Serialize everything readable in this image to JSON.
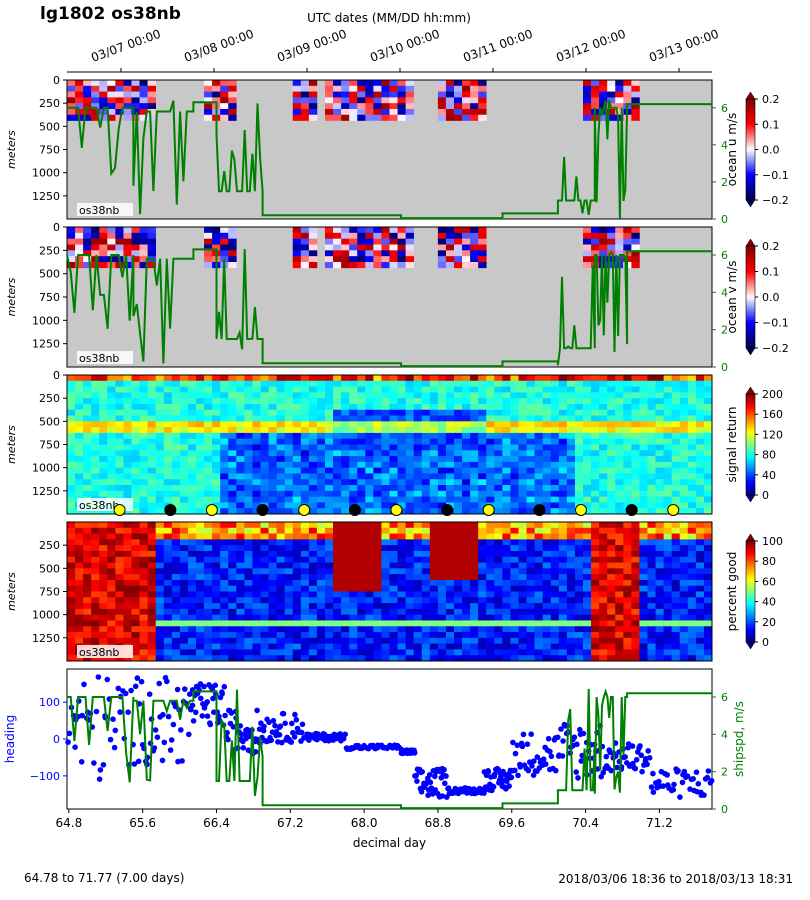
{
  "header": {
    "title": "lg1802 os38nb",
    "top_axis_label": "UTC dates (MM/DD hh:mm)",
    "top_ticks": [
      "03/07 00:00",
      "03/08 00:00",
      "03/09 00:00",
      "03/10 00:00",
      "03/11 00:00",
      "03/12 00:00",
      "03/13 00:00"
    ]
  },
  "footer": {
    "range_left": "64.78 to 71.77 (7.00 days)",
    "range_right": "2018/03/06 18:36 to 2018/03/13 18:31"
  },
  "colors": {
    "nodata": "#c8c8c8",
    "ship_speed": "#008000",
    "heading": "#0000ff",
    "marker_night": "#000000",
    "marker_day": "#ffff00"
  },
  "chart_data": [
    {
      "type": "heatmap",
      "panel": "ocean_u",
      "ylabel": "meters",
      "tag": "os38nb",
      "yticks": [
        "0",
        "250",
        "500",
        "750",
        "1000",
        "1250"
      ],
      "ylim": [
        1500,
        0
      ],
      "xlim": [
        64.78,
        71.77
      ],
      "colorbar": {
        "label": "ocean u m/s",
        "ticks": [
          "0.2",
          "0.1",
          "0.0",
          "−0.1",
          "−0.2"
        ],
        "range": [
          -0.2,
          0.2
        ],
        "colormap": "seismic"
      },
      "right_axis": {
        "ticks": [
          "6",
          "4",
          "2",
          "0"
        ]
      }
    },
    {
      "type": "heatmap",
      "panel": "ocean_v",
      "ylabel": "meters",
      "tag": "os38nb",
      "yticks": [
        "0",
        "250",
        "500",
        "750",
        "1000",
        "1250"
      ],
      "ylim": [
        1500,
        0
      ],
      "xlim": [
        64.78,
        71.77
      ],
      "colorbar": {
        "label": "ocean v m/s",
        "ticks": [
          "0.2",
          "0.1",
          "0.0",
          "−0.1",
          "−0.2"
        ],
        "range": [
          -0.2,
          0.2
        ],
        "colormap": "seismic"
      },
      "right_axis": {
        "ticks": [
          "6",
          "4",
          "2",
          "0"
        ]
      }
    },
    {
      "type": "heatmap",
      "panel": "signal_return",
      "ylabel": "meters",
      "tag": "os38nb",
      "yticks": [
        "0",
        "250",
        "500",
        "750",
        "1000",
        "1250"
      ],
      "ylim": [
        1500,
        0
      ],
      "xlim": [
        64.78,
        71.77
      ],
      "colorbar": {
        "label": "signal return",
        "ticks": [
          "200",
          "160",
          "120",
          "80",
          "40",
          "0"
        ],
        "range": [
          0,
          200
        ],
        "colormap": "jet"
      },
      "day_night_markers": [
        {
          "x": 65.35,
          "kind": "day"
        },
        {
          "x": 65.9,
          "kind": "night"
        },
        {
          "x": 66.35,
          "kind": "day"
        },
        {
          "x": 66.9,
          "kind": "night"
        },
        {
          "x": 67.35,
          "kind": "day"
        },
        {
          "x": 67.9,
          "kind": "night"
        },
        {
          "x": 68.35,
          "kind": "day"
        },
        {
          "x": 68.9,
          "kind": "night"
        },
        {
          "x": 69.35,
          "kind": "day"
        },
        {
          "x": 69.9,
          "kind": "night"
        },
        {
          "x": 70.35,
          "kind": "day"
        },
        {
          "x": 70.9,
          "kind": "night"
        },
        {
          "x": 71.35,
          "kind": "day"
        }
      ]
    },
    {
      "type": "heatmap",
      "panel": "percent_good",
      "ylabel": "meters",
      "tag": "os38nb",
      "yticks": [
        "250",
        "500",
        "750",
        "1000",
        "1250"
      ],
      "ylim": [
        1500,
        0
      ],
      "xlim": [
        64.78,
        71.77
      ],
      "colorbar": {
        "label": "percent good",
        "ticks": [
          "100",
          "80",
          "60",
          "40",
          "20",
          "0"
        ],
        "range": [
          0,
          100
        ],
        "colormap": "jet"
      }
    },
    {
      "type": "scatter",
      "panel": "heading_speed",
      "xlabel": "decimal day",
      "xticks": [
        "64.8",
        "65.6",
        "66.4",
        "67.2",
        "68.0",
        "68.8",
        "69.6",
        "70.4",
        "71.2"
      ],
      "xlim": [
        64.78,
        71.77
      ],
      "left_axis": {
        "label": "heading",
        "ticks": [
          "100",
          "0",
          "−100"
        ],
        "ylim": [
          -190,
          190
        ]
      },
      "right_axis": {
        "label": "shipspd, m/s",
        "ticks": [
          "6",
          "4",
          "2",
          "0"
        ],
        "ylim": [
          0,
          7.5
        ]
      },
      "ship_speed_segments": [
        {
          "from": 64.78,
          "to": 65.5,
          "speed": 6.0,
          "noisy": true
        },
        {
          "from": 65.5,
          "to": 66.15,
          "speed": 5.8,
          "noisy": true
        },
        {
          "from": 66.15,
          "to": 66.4,
          "speed": 6.3,
          "noisy": false
        },
        {
          "from": 66.4,
          "to": 66.9,
          "speed": 1.5,
          "noisy": true
        },
        {
          "from": 66.9,
          "to": 68.4,
          "speed": 0.2,
          "noisy": false
        },
        {
          "from": 68.4,
          "to": 69.5,
          "speed": 0.05,
          "noisy": false
        },
        {
          "from": 69.5,
          "to": 70.1,
          "speed": 0.3,
          "noisy": false
        },
        {
          "from": 70.1,
          "to": 70.5,
          "speed": 1.0,
          "noisy": true
        },
        {
          "from": 70.5,
          "to": 70.85,
          "speed": 6.0,
          "noisy": true
        },
        {
          "from": 70.85,
          "to": 71.77,
          "speed": 6.2,
          "noisy": false
        }
      ],
      "heading_segments": [
        {
          "from": 64.78,
          "to": 65.5,
          "heading": 30,
          "spread": 150
        },
        {
          "from": 65.5,
          "to": 66.1,
          "heading": 50,
          "spread": 120
        },
        {
          "from": 66.1,
          "to": 66.5,
          "heading": 90,
          "spread": 60
        },
        {
          "from": 66.5,
          "to": 66.9,
          "heading": 20,
          "spread": 60
        },
        {
          "from": 66.9,
          "to": 67.35,
          "heading": 30,
          "spread": 40
        },
        {
          "from": 67.35,
          "to": 67.8,
          "heading": 5,
          "spread": 10
        },
        {
          "from": 67.8,
          "to": 68.4,
          "heading": -22,
          "spread": 6
        },
        {
          "from": 68.4,
          "to": 68.55,
          "heading": -35,
          "spread": 5
        },
        {
          "from": 68.55,
          "to": 68.9,
          "heading": -120,
          "spread": 40
        },
        {
          "from": 68.9,
          "to": 69.3,
          "heading": -140,
          "spread": 8
        },
        {
          "from": 69.3,
          "to": 69.6,
          "heading": -110,
          "spread": 30
        },
        {
          "from": 69.6,
          "to": 70.1,
          "heading": -40,
          "spread": 60
        },
        {
          "from": 70.1,
          "to": 70.6,
          "heading": -30,
          "spread": 80
        },
        {
          "from": 70.6,
          "to": 71.1,
          "heading": -50,
          "spread": 40
        },
        {
          "from": 71.1,
          "to": 71.77,
          "heading": -120,
          "spread": 40
        }
      ]
    }
  ]
}
